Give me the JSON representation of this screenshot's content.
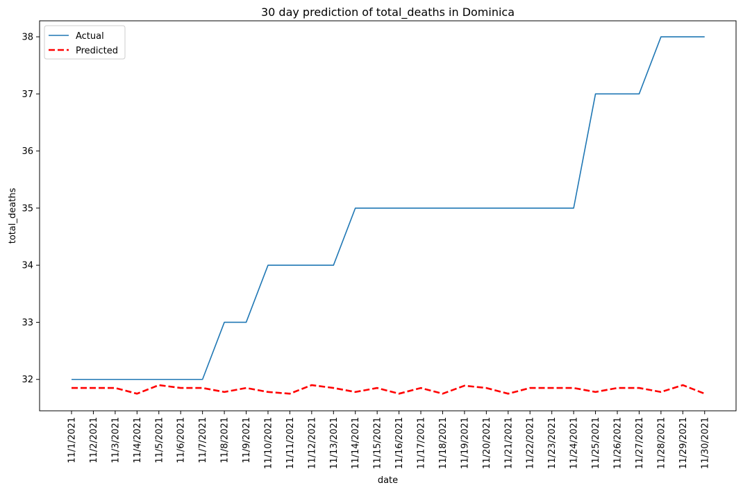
{
  "chart_data": {
    "type": "line",
    "title": "30 day prediction of total_deaths in Dominica",
    "xlabel": "date",
    "ylabel": "total_deaths",
    "x": [
      "11/1/2021",
      "11/2/2021",
      "11/3/2021",
      "11/4/2021",
      "11/5/2021",
      "11/6/2021",
      "11/7/2021",
      "11/8/2021",
      "11/9/2021",
      "11/10/2021",
      "11/11/2021",
      "11/12/2021",
      "11/13/2021",
      "11/14/2021",
      "11/15/2021",
      "11/16/2021",
      "11/17/2021",
      "11/18/2021",
      "11/19/2021",
      "11/20/2021",
      "11/21/2021",
      "11/22/2021",
      "11/23/2021",
      "11/24/2021",
      "11/25/2021",
      "11/26/2021",
      "11/27/2021",
      "11/28/2021",
      "11/29/2021",
      "11/30/2021"
    ],
    "ylim": [
      31.45,
      38.28
    ],
    "yticks": [
      32,
      33,
      34,
      35,
      36,
      37,
      38
    ],
    "grid": false,
    "legend_position": "top-left",
    "series": [
      {
        "name": "Actual",
        "color": "#1f77b4",
        "style": "solid",
        "values": [
          32,
          32,
          32,
          32,
          32,
          32,
          32,
          33,
          33,
          34,
          34,
          34,
          34,
          35,
          35,
          35,
          35,
          35,
          35,
          35,
          35,
          35,
          35,
          35,
          37,
          37,
          37,
          38,
          38,
          38
        ]
      },
      {
        "name": "Predicted",
        "color": "#ff0000",
        "style": "dashed",
        "values": [
          31.85,
          31.85,
          31.85,
          31.75,
          31.9,
          31.85,
          31.85,
          31.78,
          31.85,
          31.78,
          31.75,
          31.9,
          31.85,
          31.78,
          31.85,
          31.75,
          31.85,
          31.75,
          31.89,
          31.85,
          31.75,
          31.85,
          31.85,
          31.85,
          31.78,
          31.85,
          31.85,
          31.78,
          31.9,
          31.75
        ]
      }
    ]
  }
}
